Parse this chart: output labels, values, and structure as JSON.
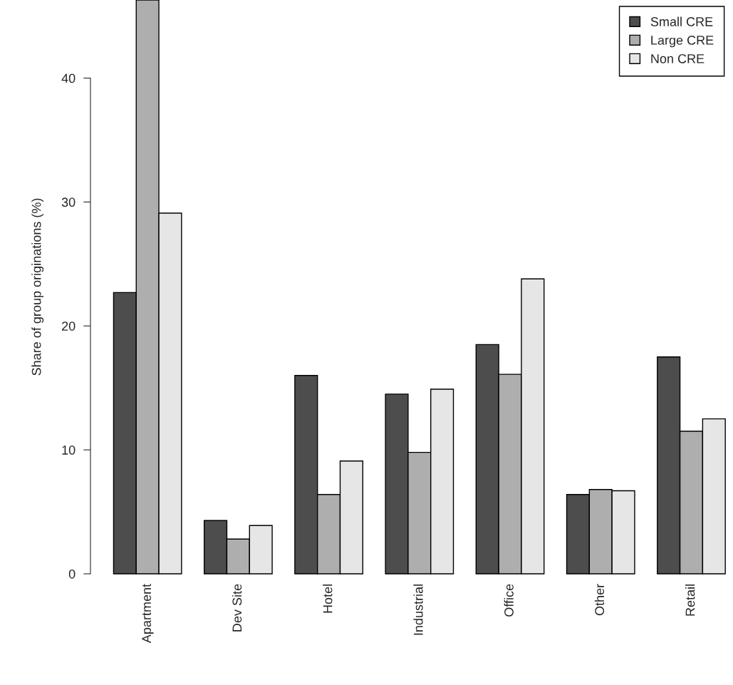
{
  "chart_data": {
    "type": "bar",
    "ylabel": "Share of group originations (%)",
    "categories": [
      "Apartment",
      "Dev Site",
      "Hotel",
      "Industrial",
      "Office",
      "Other",
      "Retail"
    ],
    "series": [
      {
        "name": "Small CRE",
        "color": "#4d4d4d",
        "values": [
          22.7,
          4.3,
          16.0,
          14.5,
          18.5,
          6.4,
          17.5
        ]
      },
      {
        "name": "Large CRE",
        "color": "#aeaeae",
        "values": [
          46.3,
          2.8,
          6.4,
          9.8,
          16.1,
          6.8,
          11.5
        ]
      },
      {
        "name": "Non CRE",
        "color": "#e6e6e6",
        "values": [
          29.1,
          3.9,
          9.1,
          14.9,
          23.8,
          6.7,
          12.5
        ]
      }
    ],
    "ylim": [
      0,
      46.3
    ],
    "yticks": [
      0,
      10,
      20,
      30,
      40
    ],
    "grid": false,
    "legend": "top right"
  }
}
